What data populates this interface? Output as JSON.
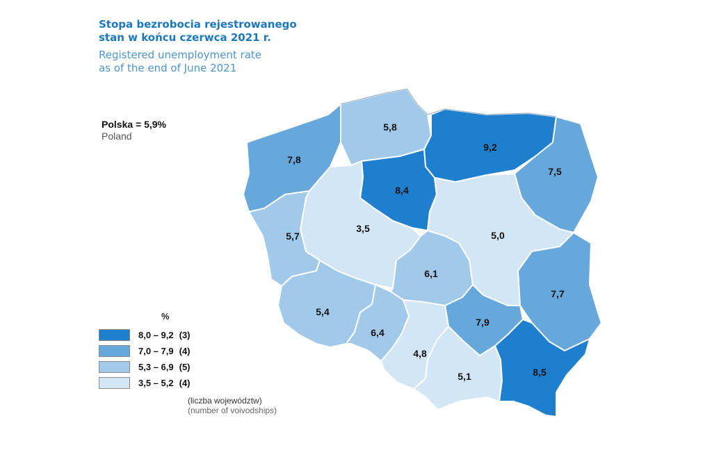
{
  "title": {
    "pl_line1": "Stopa bezrobocia rejestrowanego",
    "pl_line2": "stan w końcu czerwca 2021 r.",
    "en_line1": "Registered unemployment rate",
    "en_line2": "as of the end of June 2021"
  },
  "national": {
    "pl": "Polska = 5,9%",
    "en": "Poland"
  },
  "colors": {
    "class1": "#1f7fcf",
    "class2": "#66a8dc",
    "class3": "#a1c9ea",
    "class4": "#d3e6f6"
  },
  "regions": [
    {
      "value": "7,8",
      "class": "class2"
    },
    {
      "value": "5,8",
      "class": "class3"
    },
    {
      "value": "9,2",
      "class": "class1"
    },
    {
      "value": "7,5",
      "class": "class2"
    },
    {
      "value": "8,4",
      "class": "class1"
    },
    {
      "value": "3,5",
      "class": "class4"
    },
    {
      "value": "5,0",
      "class": "class4"
    },
    {
      "value": "5,7",
      "class": "class3"
    },
    {
      "value": "6,1",
      "class": "class3"
    },
    {
      "value": "7,7",
      "class": "class2"
    },
    {
      "value": "5,4",
      "class": "class3"
    },
    {
      "value": "7,9",
      "class": "class2"
    },
    {
      "value": "6,4",
      "class": "class3"
    },
    {
      "value": "4,8",
      "class": "class4"
    },
    {
      "value": "5,1",
      "class": "class4"
    },
    {
      "value": "8,5",
      "class": "class1"
    }
  ],
  "legend": {
    "unit": "%",
    "items": [
      {
        "range": "8,0 – 9,2",
        "count": "(3)",
        "class": "class1"
      },
      {
        "range": "7,0 – 7,9",
        "count": "(4)",
        "class": "class2"
      },
      {
        "range": "5,3 – 6,9",
        "count": "(5)",
        "class": "class3"
      },
      {
        "range": "3,5 – 5,2",
        "count": "(4)",
        "class": "class4"
      }
    ],
    "note_pl": "(liczba województw)",
    "note_en": "(number of voivodships)"
  }
}
